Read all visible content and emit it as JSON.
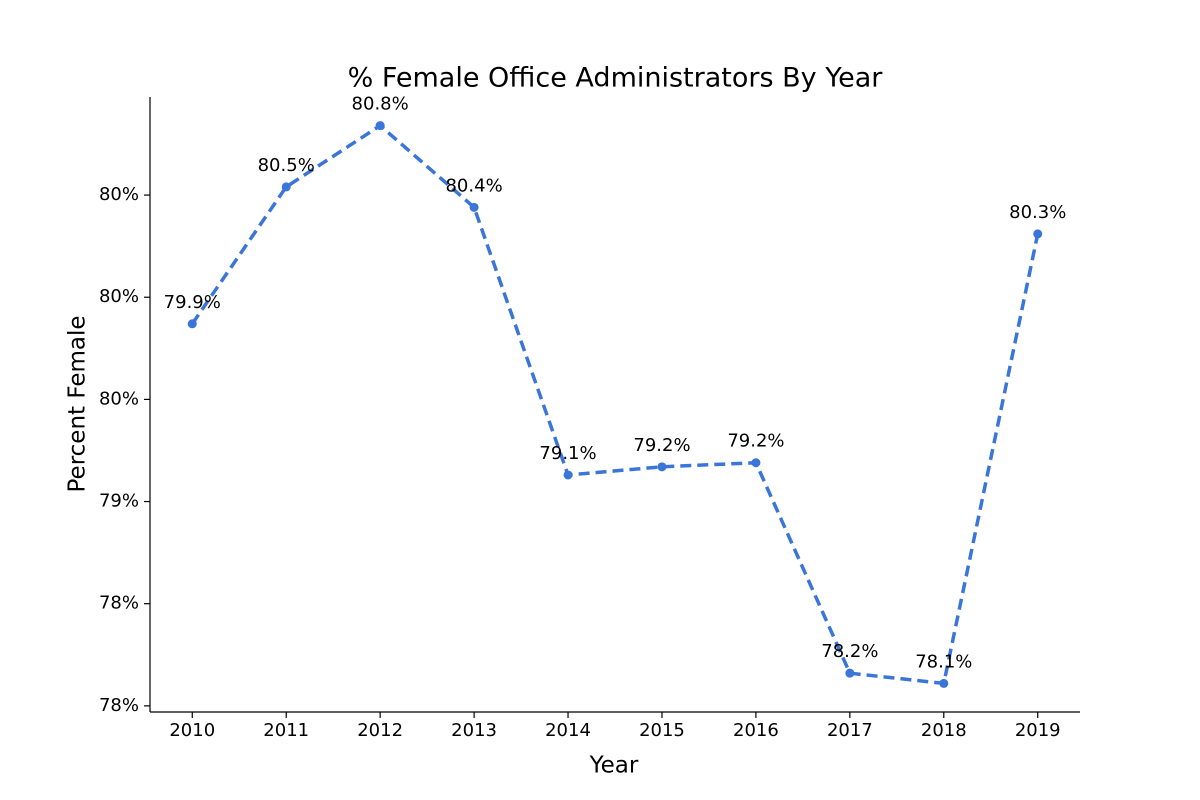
{
  "chart_data": {
    "type": "line",
    "title": "% Female Office Administrators By Year",
    "x_label": "Year",
    "y_label": "Percent Female",
    "x": [
      2010,
      2011,
      2012,
      2013,
      2014,
      2015,
      2016,
      2017,
      2018,
      2019
    ],
    "series": [
      {
        "name": "Percent Female",
        "color": "#3a75d9",
        "values": [
          79.87,
          80.54,
          80.84,
          80.44,
          79.13,
          79.17,
          79.19,
          78.16,
          78.11,
          80.31
        ],
        "value_labels": [
          "79.9%",
          "80.5%",
          "80.8%",
          "80.4%",
          "79.1%",
          "79.2%",
          "79.2%",
          "78.2%",
          "78.1%",
          "80.3%"
        ]
      }
    ],
    "xlim": [
      2009.55,
      2019.45
    ],
    "xticks": [
      2010,
      2011,
      2012,
      2013,
      2014,
      2015,
      2016,
      2017,
      2018,
      2019
    ],
    "ylim": [
      77.97,
      80.98
    ],
    "yticks": [
      {
        "value": 78.0,
        "label": "78%"
      },
      {
        "value": 78.5,
        "label": "78%"
      },
      {
        "value": 79.0,
        "label": "79%"
      },
      {
        "value": 79.5,
        "label": "80%"
      },
      {
        "value": 80.0,
        "label": "80%"
      },
      {
        "value": 80.5,
        "label": "80%"
      }
    ],
    "grid": false
  }
}
